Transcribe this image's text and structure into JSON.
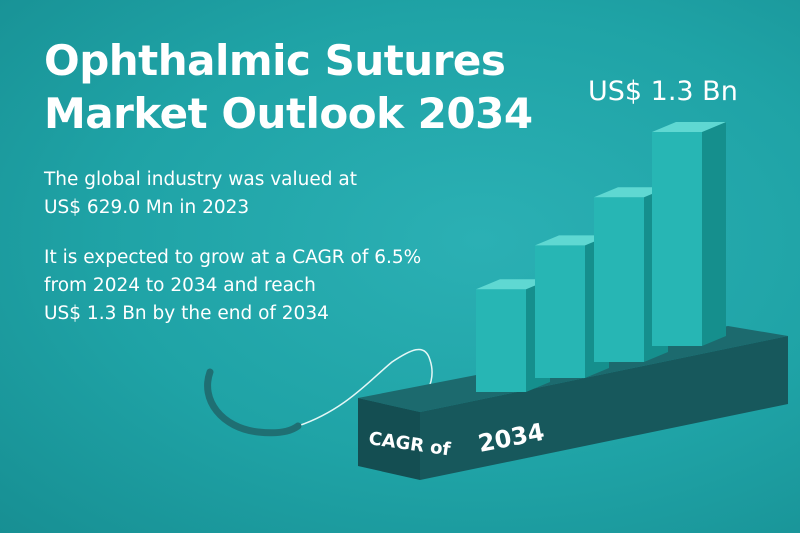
{
  "title": {
    "line1": "Ophthalmic Sutures",
    "line2": "Market Outlook 2034"
  },
  "paragraph1": {
    "line1": "The global industry was valued at",
    "line2": "US$ 629.0 Mn in 2023"
  },
  "paragraph2": {
    "line1": "It is expected to grow at a CAGR of 6.5%",
    "line2": "from 2024 to 2034 and reach",
    "line3": "US$ 1.3 Bn by the end of 2034"
  },
  "value_callout": "US$ 1.3 Bn",
  "base_labels": {
    "cagr": "CAGR of",
    "year": "2034"
  },
  "colors": {
    "background": "#1fa3a6",
    "bar_front": "#27b6b4",
    "bar_top": "#5fd8d2",
    "bar_side": "#158f8d",
    "platform": "#16595d",
    "suture": "#1f6f73"
  },
  "bars": [
    {
      "relative_height": 0.48
    },
    {
      "relative_height": 0.62
    },
    {
      "relative_height": 0.77
    },
    {
      "relative_height": 1.0
    }
  ]
}
